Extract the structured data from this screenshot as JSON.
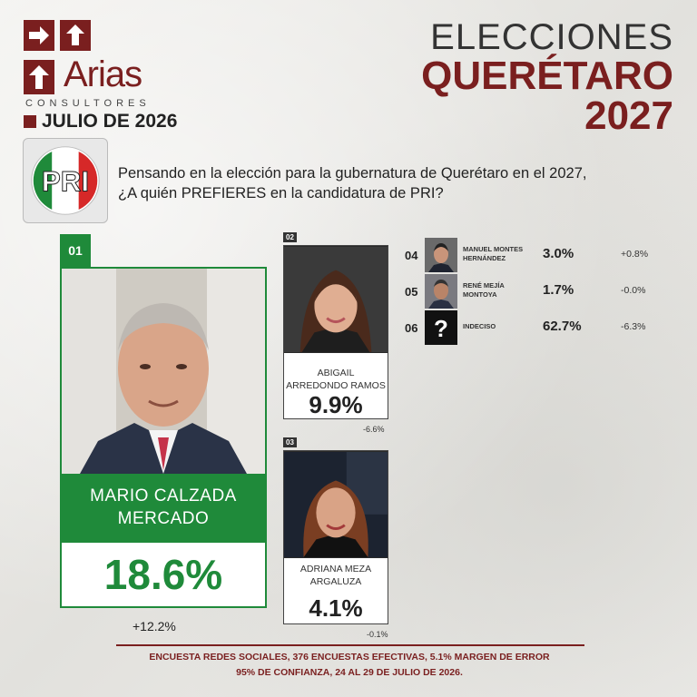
{
  "brand": {
    "name": "Arias",
    "subtitle": "CONSULTORES",
    "date": "JULIO DE 2026",
    "color": "#7a1f1f"
  },
  "header": {
    "line1": "ELECCIONES",
    "line2": "QUERÉTARO",
    "line3": "2027"
  },
  "party": {
    "name": "PRI",
    "icon": "pri-logo-icon"
  },
  "question": {
    "line1": "Pensando en la elección para la gubernatura de Querétaro en el 2027,",
    "line2": "¿A quién PREFIERES en la candidatura de PRI?"
  },
  "candidates": [
    {
      "rank": "01",
      "name_line1": "MARIO CALZADA",
      "name_line2": "MERCADO",
      "pct": "18.6%",
      "delta": "+12.2%"
    },
    {
      "rank": "02",
      "name_line1": "ABIGAIL",
      "name_line2": "ARREDONDO RAMOS",
      "pct": "9.9%",
      "delta": "-6.6%"
    },
    {
      "rank": "03",
      "name_line1": "ADRIANA MEZA",
      "name_line2": "ARGALUZA",
      "pct": "4.1%",
      "delta": "-0.1%"
    }
  ],
  "others": [
    {
      "rank": "04",
      "name_line1": "MANUEL MONTES",
      "name_line2": "HERNÁNDEZ",
      "pct": "3.0%",
      "delta": "+0.8%"
    },
    {
      "rank": "05",
      "name_line1": "RENÉ MEJÍA",
      "name_line2": "MONTOYA",
      "pct": "1.7%",
      "delta": "-0.0%"
    },
    {
      "rank": "06",
      "name_line1": "INDECISO",
      "name_line2": "",
      "pct": "62.7%",
      "delta": "-6.3%",
      "icon": "question-mark-icon"
    }
  ],
  "footer": {
    "line1": "ENCUESTA REDES SOCIALES, 376 ENCUESTAS EFECTIVAS, 5.1%  MARGEN DE ERROR",
    "line2": "95% DE CONFIANZA, 24 AL 29 DE JULIO DE 2026."
  },
  "colors": {
    "green": "#1f8a3a",
    "maroon": "#7a1f1f",
    "red": "#d62828"
  }
}
